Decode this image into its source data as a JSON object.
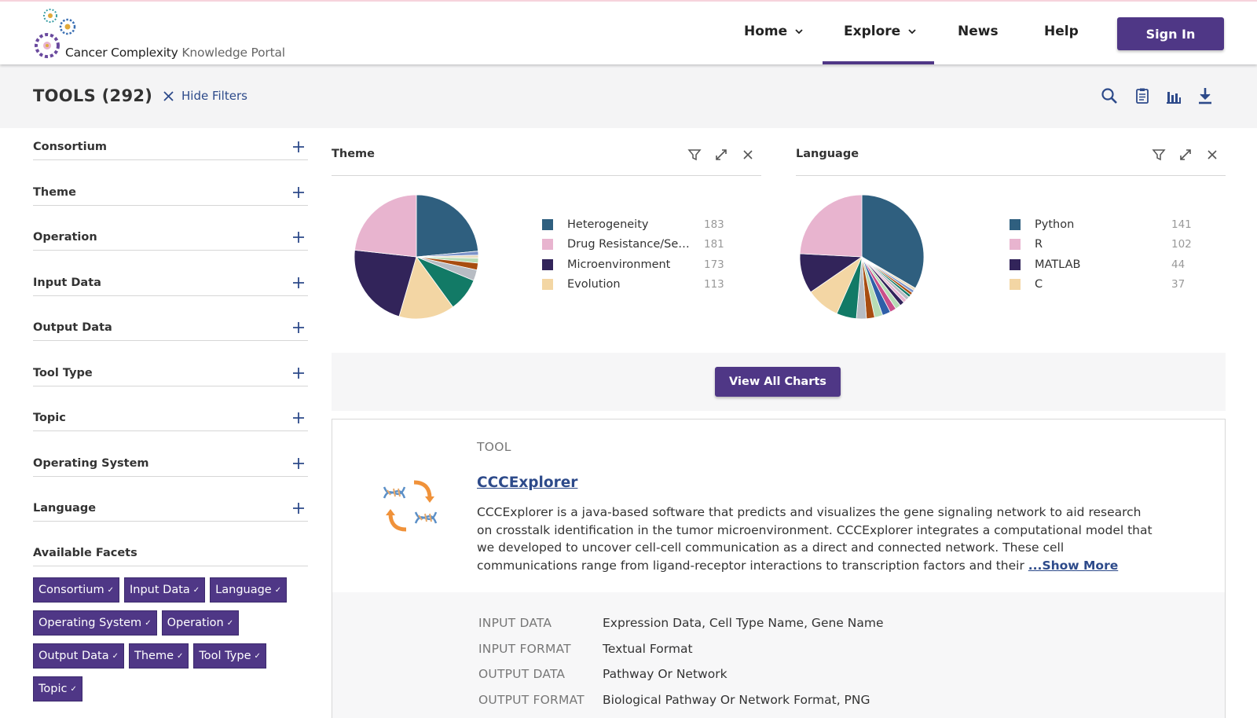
{
  "header": {
    "logo_text_main": "Cancer Complexity",
    "logo_text_light": "Knowledge Portal",
    "nav": [
      {
        "label": "Home",
        "dropdown": true
      },
      {
        "label": "Explore",
        "dropdown": true,
        "active": true
      },
      {
        "label": "News",
        "dropdown": false
      },
      {
        "label": "Help",
        "dropdown": false
      }
    ],
    "sign_in_label": "Sign In"
  },
  "subheader": {
    "title": "TOOLS (292)",
    "hide_filters_label": "Hide Filters",
    "icons": [
      "search-icon",
      "clipboard-icon",
      "bar-chart-icon",
      "download-icon"
    ]
  },
  "sidebar": {
    "facets": [
      "Consortium",
      "Theme",
      "Operation",
      "Input Data",
      "Output Data",
      "Tool Type",
      "Topic",
      "Operating System",
      "Language"
    ],
    "available_facets_title": "Available Facets",
    "chips": [
      [
        "Consortium",
        "Input Data",
        "Language"
      ],
      [
        "Operating System",
        "Operation"
      ],
      [
        "Output Data",
        "Theme",
        "Tool Type"
      ],
      [
        "Topic"
      ]
    ],
    "chip_check": "✓"
  },
  "chart_data": [
    {
      "type": "pie",
      "title": "Theme",
      "legend": [
        {
          "name": "Heterogeneity",
          "value": 183,
          "color": "#2f5f7f"
        },
        {
          "name": "Drug Resistance/Sensi...",
          "value": 181,
          "color": "#e8b4cf"
        },
        {
          "name": "Microenvironment",
          "value": 173,
          "color": "#32245a"
        },
        {
          "name": "Evolution",
          "value": 113,
          "color": "#f3d6a4"
        }
      ],
      "slices": [
        {
          "value": 183,
          "color": "#2f5f7f"
        },
        {
          "value": 8,
          "color": "#7c93c9"
        },
        {
          "value": 6,
          "color": "#eadcc0"
        },
        {
          "value": 10,
          "color": "#b7dcb5"
        },
        {
          "value": 14,
          "color": "#a84d10"
        },
        {
          "value": 22,
          "color": "#b7bcc3"
        },
        {
          "value": 68,
          "color": "#127a66"
        },
        {
          "value": 113,
          "color": "#f3d6a4"
        },
        {
          "value": 173,
          "color": "#32245a"
        },
        {
          "value": 181,
          "color": "#e8b4cf"
        }
      ]
    },
    {
      "type": "pie",
      "title": "Language",
      "legend": [
        {
          "name": "Python",
          "value": 141,
          "color": "#2f5f7f"
        },
        {
          "name": "R",
          "value": 102,
          "color": "#e8b4cf"
        },
        {
          "name": "MATLAB",
          "value": 44,
          "color": "#32245a"
        },
        {
          "name": "C",
          "value": 37,
          "color": "#f3d6a4"
        }
      ],
      "slices": [
        {
          "value": 141,
          "color": "#2f5f7f"
        },
        {
          "value": 3,
          "color": "#eadcc0"
        },
        {
          "value": 3,
          "color": "#7c93c9"
        },
        {
          "value": 3,
          "color": "#a84d10"
        },
        {
          "value": 3,
          "color": "#127a66"
        },
        {
          "value": 4,
          "color": "#b7bcc3"
        },
        {
          "value": 4,
          "color": "#e8b4cf"
        },
        {
          "value": 5,
          "color": "#32245a"
        },
        {
          "value": 6,
          "color": "#b7dcb5"
        },
        {
          "value": 7,
          "color": "#c94f8a"
        },
        {
          "value": 9,
          "color": "#2f5fa8"
        },
        {
          "value": 9,
          "color": "#b7dcb5"
        },
        {
          "value": 9,
          "color": "#a84d10"
        },
        {
          "value": 11,
          "color": "#b7bcc3"
        },
        {
          "value": 22,
          "color": "#127a66"
        },
        {
          "value": 37,
          "color": "#f3d6a4"
        },
        {
          "value": 44,
          "color": "#32245a"
        },
        {
          "value": 102,
          "color": "#e8b4cf"
        }
      ]
    }
  ],
  "view_all_charts_label": "View All Charts",
  "result": {
    "type_label": "TOOL",
    "name": "CCCExplorer",
    "description": "CCCExplorer is a java-based software that predicts and visualizes the gene signaling network to aid research on crosstalk identification in the tumor microenvironment. CCCExplorer integrates a computational model that we developed to uncover cell-cell communication as a direct and connected network. These cell communications range from ligand-receptor interactions to transcription factors and their",
    "show_more_label": "...Show More",
    "meta": [
      {
        "key": "INPUT DATA",
        "value": "Expression Data, Cell Type Name, Gene Name"
      },
      {
        "key": "INPUT FORMAT",
        "value": "Textual Format"
      },
      {
        "key": "OUTPUT DATA",
        "value": "Pathway Or Network"
      },
      {
        "key": "OUTPUT FORMAT",
        "value": "Biological Pathway Or Network Format, PNG"
      }
    ]
  }
}
